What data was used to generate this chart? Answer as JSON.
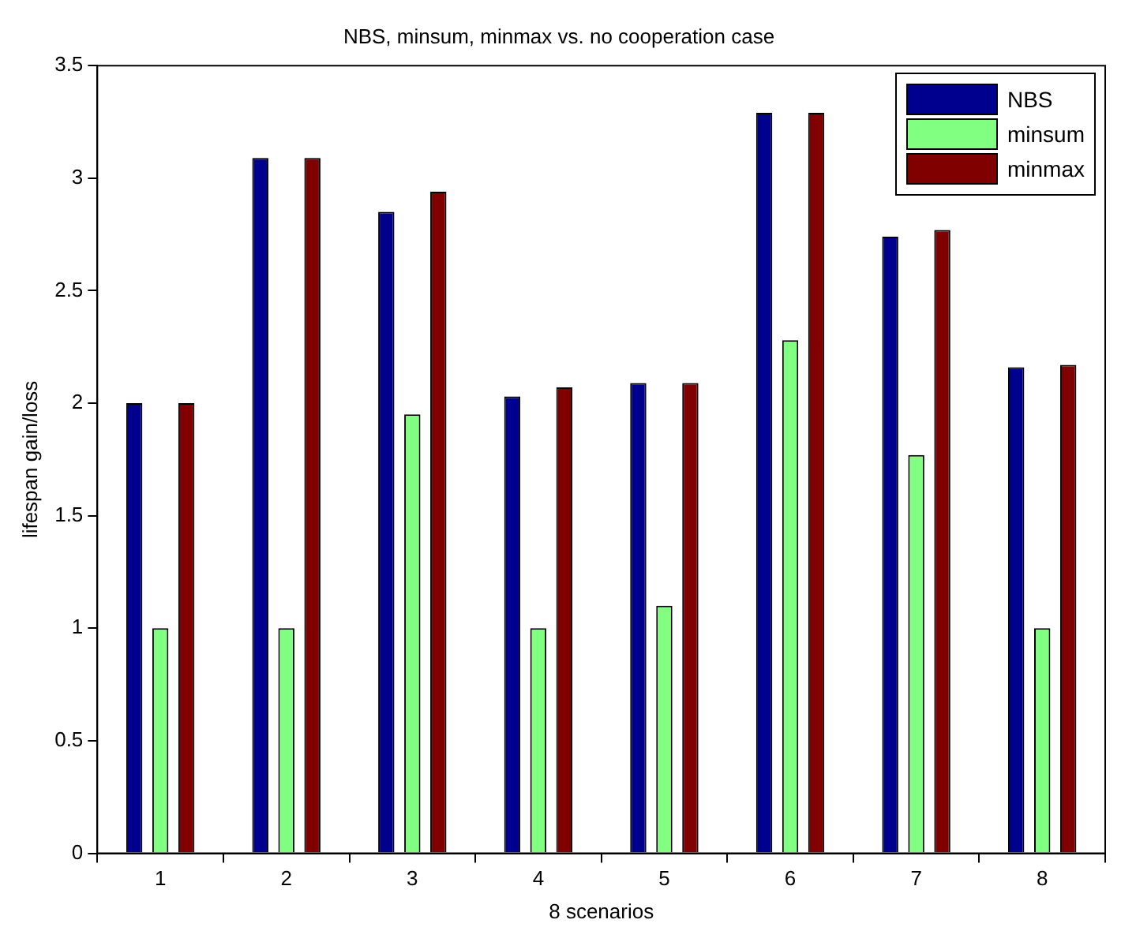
{
  "chart_data": {
    "type": "bar",
    "title": "NBS, minsum, minmax vs. no cooperation case",
    "xlabel": "8 scenarios",
    "ylabel": "lifespan gain/loss",
    "categories": [
      "1",
      "2",
      "3",
      "4",
      "5",
      "6",
      "7",
      "8"
    ],
    "series": [
      {
        "name": "NBS",
        "color": "#00008f",
        "values": [
          2.0,
          3.09,
          2.85,
          2.03,
          2.09,
          3.29,
          2.74,
          2.16
        ]
      },
      {
        "name": "minsum",
        "color": "#80ff80",
        "values": [
          1.0,
          1.0,
          1.95,
          1.0,
          1.1,
          2.28,
          1.77,
          1.0
        ]
      },
      {
        "name": "minmax",
        "color": "#800000",
        "values": [
          2.0,
          3.09,
          2.94,
          2.07,
          2.09,
          3.29,
          2.77,
          2.17
        ]
      }
    ],
    "ylim": [
      0,
      3.5
    ],
    "yticks": [
      0,
      0.5,
      1,
      1.5,
      2,
      2.5,
      3,
      3.5
    ],
    "grid": false,
    "legend": "top right"
  }
}
